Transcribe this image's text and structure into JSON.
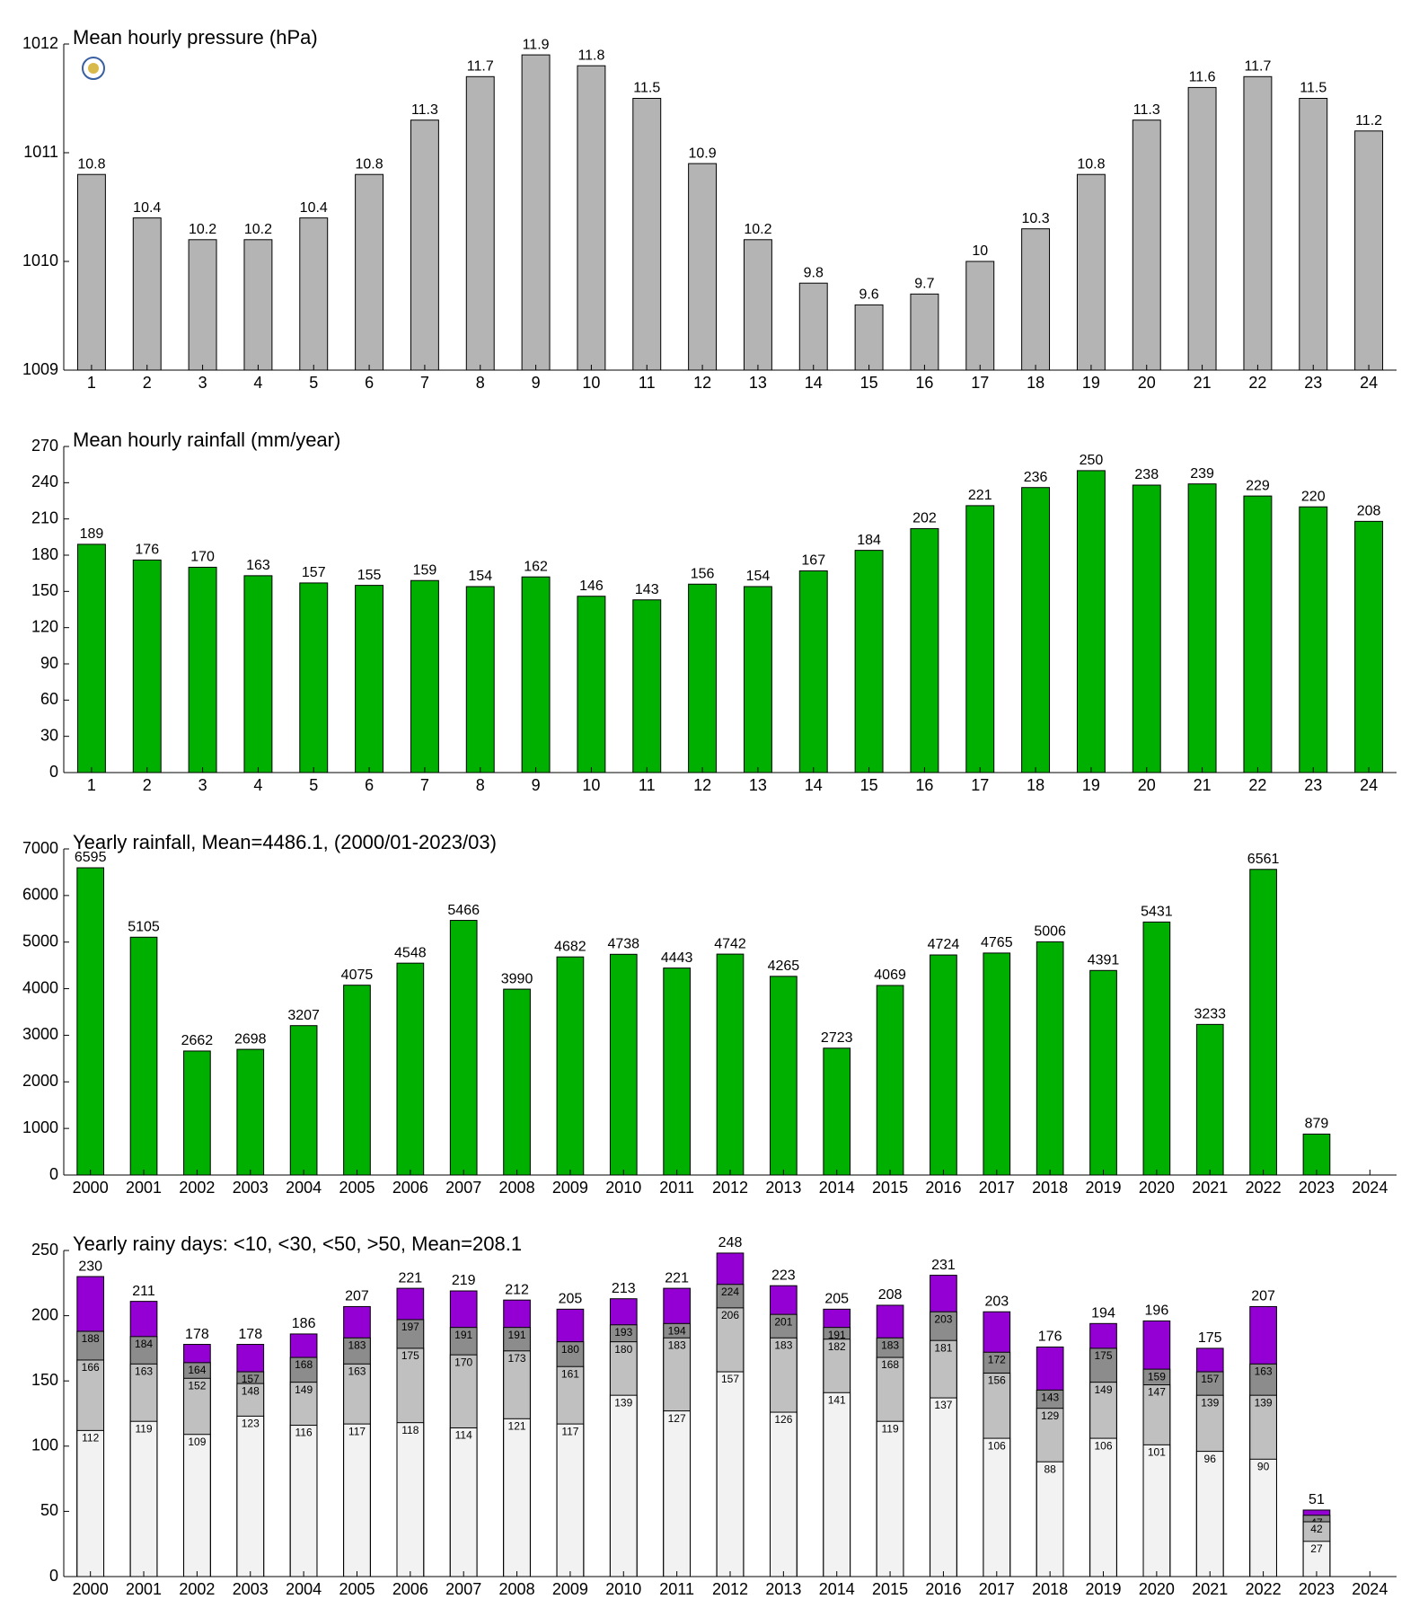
{
  "chart_data": [
    {
      "type": "bar",
      "title": "Mean hourly pressure (hPa)",
      "categories": [
        "1",
        "2",
        "3",
        "4",
        "5",
        "6",
        "7",
        "8",
        "9",
        "10",
        "11",
        "12",
        "13",
        "14",
        "15",
        "16",
        "17",
        "18",
        "19",
        "20",
        "21",
        "22",
        "23",
        "24"
      ],
      "values": [
        1010.8,
        1010.4,
        1010.2,
        1010.2,
        1010.4,
        1010.8,
        1011.3,
        1011.7,
        1011.9,
        1011.8,
        1011.5,
        1010.9,
        1010.2,
        1009.8,
        1009.6,
        1009.7,
        1010.0,
        1010.3,
        1010.8,
        1011.3,
        1011.6,
        1011.7,
        1011.5,
        1011.2
      ],
      "value_labels": [
        "10.8",
        "10.4",
        "10.2",
        "10.2",
        "10.4",
        "10.8",
        "11.3",
        "11.7",
        "11.9",
        "11.8",
        "11.5",
        "10.9",
        "10.2",
        "9.8",
        "9.6",
        "9.7",
        "10",
        "10.3",
        "10.8",
        "11.3",
        "11.6",
        "11.7",
        "11.5",
        "11.2"
      ],
      "color": "#b4b4b4",
      "ylim": [
        1009,
        1012
      ],
      "yticks": [
        1009,
        1010,
        1011,
        1012
      ]
    },
    {
      "type": "bar",
      "title": "Mean hourly rainfall (mm/year)",
      "categories": [
        "1",
        "2",
        "3",
        "4",
        "5",
        "6",
        "7",
        "8",
        "9",
        "10",
        "11",
        "12",
        "13",
        "14",
        "15",
        "16",
        "17",
        "18",
        "19",
        "20",
        "21",
        "22",
        "23",
        "24"
      ],
      "values": [
        189,
        176,
        170,
        163,
        157,
        155,
        159,
        154,
        162,
        146,
        143,
        156,
        154,
        167,
        184,
        202,
        221,
        236,
        250,
        238,
        239,
        229,
        220,
        208
      ],
      "color": "#00b000",
      "ylim": [
        0,
        270
      ],
      "yticks": [
        0,
        30,
        60,
        90,
        120,
        150,
        180,
        210,
        240,
        270
      ]
    },
    {
      "type": "bar",
      "title": "Yearly rainfall, Mean=4486.1, (2000/01-2023/03)",
      "categories": [
        "2000",
        "2001",
        "2002",
        "2003",
        "2004",
        "2005",
        "2006",
        "2007",
        "2008",
        "2009",
        "2010",
        "2011",
        "2012",
        "2013",
        "2014",
        "2015",
        "2016",
        "2017",
        "2018",
        "2019",
        "2020",
        "2021",
        "2022",
        "2023",
        "2024"
      ],
      "values": [
        6595,
        5105,
        2662,
        2698,
        3207,
        4075,
        4548,
        5466,
        3990,
        4682,
        4738,
        4443,
        4742,
        4265,
        2723,
        4069,
        4724,
        4765,
        5006,
        4391,
        5431,
        3233,
        6561,
        879,
        null
      ],
      "color": "#00b000",
      "ylim": [
        0,
        7000
      ],
      "yticks": [
        0,
        1000,
        2000,
        3000,
        4000,
        5000,
        6000,
        7000
      ]
    },
    {
      "type": "overlaid_bar",
      "title": "Yearly rainy days: <10, <30, <50, >50, Mean=208.1",
      "categories": [
        "2000",
        "2001",
        "2002",
        "2003",
        "2004",
        "2005",
        "2006",
        "2007",
        "2008",
        "2009",
        "2010",
        "2011",
        "2012",
        "2013",
        "2014",
        "2015",
        "2016",
        "2017",
        "2018",
        "2019",
        "2020",
        "2021",
        "2022",
        "2023",
        "2024"
      ],
      "series": [
        {
          "color": "#f2f2f2",
          "values": [
            112,
            119,
            109,
            123,
            116,
            117,
            118,
            114,
            121,
            117,
            139,
            127,
            157,
            126,
            141,
            119,
            137,
            106,
            88,
            106,
            101,
            96,
            90,
            27,
            null
          ]
        },
        {
          "color": "#c0c0c0",
          "values": [
            166,
            163,
            152,
            148,
            149,
            163,
            175,
            170,
            173,
            161,
            180,
            183,
            206,
            183,
            182,
            168,
            181,
            156,
            129,
            149,
            147,
            139,
            139,
            42,
            null
          ]
        },
        {
          "color": "#8c8c8c",
          "values": [
            188,
            184,
            164,
            157,
            168,
            183,
            197,
            191,
            191,
            180,
            193,
            194,
            224,
            201,
            191,
            183,
            203,
            172,
            143,
            175,
            159,
            157,
            163,
            47,
            null
          ]
        },
        {
          "color": "#9400d3",
          "values": [
            230,
            211,
            178,
            178,
            186,
            207,
            221,
            219,
            212,
            205,
            213,
            221,
            248,
            223,
            205,
            208,
            231,
            203,
            176,
            194,
            196,
            175,
            207,
            51,
            null
          ]
        }
      ],
      "ylim": [
        0,
        250
      ],
      "yticks": [
        0,
        50,
        100,
        150,
        200,
        250
      ]
    }
  ]
}
